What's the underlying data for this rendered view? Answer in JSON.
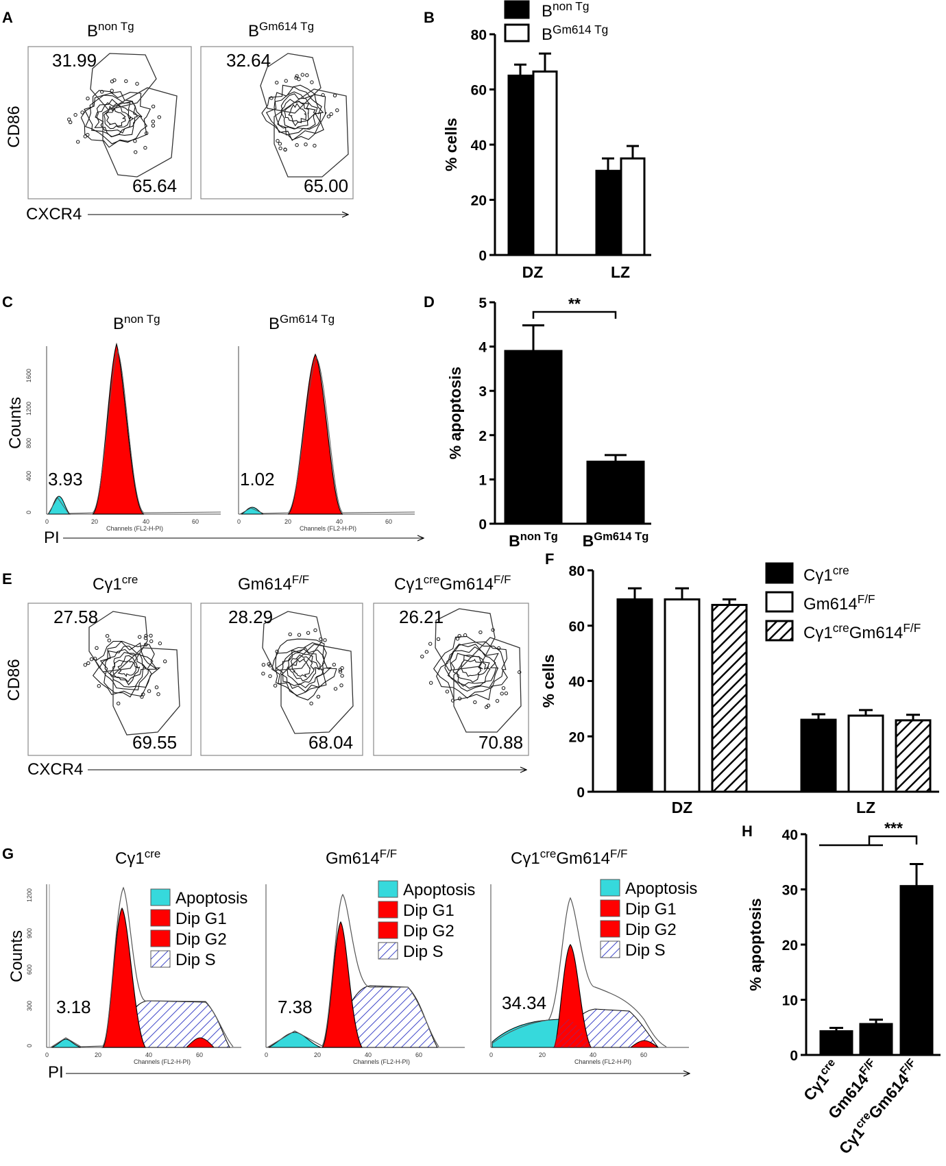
{
  "panel_labels": {
    "A": "A",
    "B": "B",
    "C": "C",
    "D": "D",
    "E": "E",
    "F": "F",
    "G": "G",
    "H": "H"
  },
  "flow_A": {
    "groups": [
      {
        "base": "B",
        "sup": "non Tg",
        "top_value": "31.99",
        "bottom_value": "65.64"
      },
      {
        "base": "B",
        "sup": "Gm614 Tg",
        "top_value": "32.64",
        "bottom_value": "65.00"
      }
    ],
    "y_label": "CD86",
    "x_label": "CXCR4"
  },
  "hist_C": {
    "groups": [
      {
        "base": "B",
        "sup": "non Tg",
        "apoptosis_value": "3.93"
      },
      {
        "base": "B",
        "sup": "Gm614 Tg",
        "apoptosis_value": "1.02"
      }
    ],
    "y_label": "Counts",
    "x_label": "PI",
    "channels_label": "Channels (FL2-H-PI)",
    "x_ticks": [
      "0",
      "20",
      "40",
      "60"
    ],
    "y_ticks": [
      "0",
      "400",
      "800",
      "1200",
      "1600"
    ]
  },
  "flow_E": {
    "groups": [
      {
        "base": "Cγ1",
        "sup": "cre",
        "mid": "",
        "sup2": "",
        "top_value": "27.58",
        "bottom_value": "69.55"
      },
      {
        "base": "Gm614",
        "sup": "F/F",
        "mid": "",
        "sup2": "",
        "top_value": "28.29",
        "bottom_value": "68.04"
      },
      {
        "base": "Cγ1",
        "sup": "cre",
        "mid": "Gm614",
        "sup2": "F/F",
        "top_value": "26.21",
        "bottom_value": "70.88"
      }
    ],
    "y_label": "CD86",
    "x_label": "CXCR4"
  },
  "hist_G": {
    "groups": [
      {
        "base": "Cγ1",
        "sup": "cre",
        "mid": "",
        "sup2": "",
        "apoptosis_value": "3.18"
      },
      {
        "base": "Gm614",
        "sup": "F/F",
        "mid": "",
        "sup2": "",
        "apoptosis_value": "7.38"
      },
      {
        "base": "Cγ1",
        "sup": "cre",
        "mid": "Gm614",
        "sup2": "F/F",
        "apoptosis_value": "34.34"
      }
    ],
    "legend": [
      "Apoptosis",
      "Dip G1",
      "Dip G2",
      "Dip S"
    ],
    "y_label": "Counts",
    "x_label": "PI",
    "channels_label": "Channels (FL2-H-PI)",
    "x_ticks": [
      "0",
      "20",
      "40",
      "60"
    ],
    "y_ticks": [
      "0",
      "300",
      "600",
      "900",
      "1200"
    ]
  },
  "colors": {
    "apoptosis": "#36d9dc",
    "dip": "#ff0000",
    "dip_s": "#3e46c8",
    "bar_black": "#000000"
  },
  "chart_data": [
    {
      "id": "B",
      "type": "bar",
      "categories": [
        "DZ",
        "LZ"
      ],
      "series": [
        {
          "name": "B non Tg",
          "label_base": "B",
          "label_sup": "non Tg",
          "fill": "solid",
          "values": [
            65,
            30.5
          ],
          "errors": [
            4,
            4.5
          ]
        },
        {
          "name": "B Gm614 Tg",
          "label_base": "B",
          "label_sup": "Gm614 Tg",
          "fill": "open",
          "values": [
            66.5,
            35
          ],
          "errors": [
            6.5,
            4.5
          ]
        }
      ],
      "ylabel": "% cells",
      "ylim": [
        0,
        80
      ],
      "yticks": [
        0,
        20,
        40,
        60,
        80
      ]
    },
    {
      "id": "D",
      "type": "bar",
      "categories": [
        {
          "base": "B",
          "sup": "non Tg"
        },
        {
          "base": "B",
          "sup": "Gm614 Tg"
        }
      ],
      "series": [
        {
          "name": "% apoptosis",
          "fill": "solid",
          "values": [
            3.9,
            1.4
          ],
          "errors": [
            0.58,
            0.15
          ]
        }
      ],
      "significance": {
        "label": "**",
        "between": [
          0,
          1
        ]
      },
      "ylabel": "% apoptosis",
      "ylim": [
        0,
        5
      ],
      "yticks": [
        0,
        1,
        2,
        3,
        4,
        5
      ]
    },
    {
      "id": "F",
      "type": "bar",
      "categories": [
        "DZ",
        "LZ"
      ],
      "series": [
        {
          "name": "Cγ1cre",
          "label_base": "Cγ1",
          "label_sup": "cre",
          "label_mid": "",
          "label_sup2": "",
          "fill": "solid",
          "values": [
            69.5,
            26
          ],
          "errors": [
            4,
            2
          ]
        },
        {
          "name": "Gm614F/F",
          "label_base": "Gm614",
          "label_sup": "F/F",
          "label_mid": "",
          "label_sup2": "",
          "fill": "open",
          "values": [
            69.5,
            27.5
          ],
          "errors": [
            4,
            2
          ]
        },
        {
          "name": "Cγ1creGm614F/F",
          "label_base": "Cγ1",
          "label_sup": "cre",
          "label_mid": "Gm614",
          "label_sup2": "F/F",
          "fill": "hatch",
          "values": [
            67.5,
            25.8
          ],
          "errors": [
            2,
            2
          ]
        }
      ],
      "ylabel": "% cells",
      "ylim": [
        0,
        80
      ],
      "yticks": [
        0,
        20,
        40,
        60,
        80
      ]
    },
    {
      "id": "H",
      "type": "bar",
      "categories": [
        {
          "base": "Cγ1",
          "sup": "cre",
          "mid": "",
          "sup2": ""
        },
        {
          "base": "Gm614",
          "sup": "F/F",
          "mid": "",
          "sup2": ""
        },
        {
          "base": "Cγ1",
          "sup": "cre",
          "mid": "Gm614",
          "sup2": "F/F"
        }
      ],
      "series": [
        {
          "name": "% apoptosis",
          "fill": "solid",
          "values": [
            4.3,
            5.6,
            30.6
          ],
          "errors": [
            0.6,
            0.8,
            4
          ]
        }
      ],
      "significance": {
        "label": "***",
        "between": [
          [
            0,
            1
          ],
          2
        ]
      },
      "ylabel": "% apoptosis",
      "ylim": [
        0,
        40
      ],
      "yticks": [
        0,
        10,
        20,
        30,
        40
      ]
    }
  ]
}
